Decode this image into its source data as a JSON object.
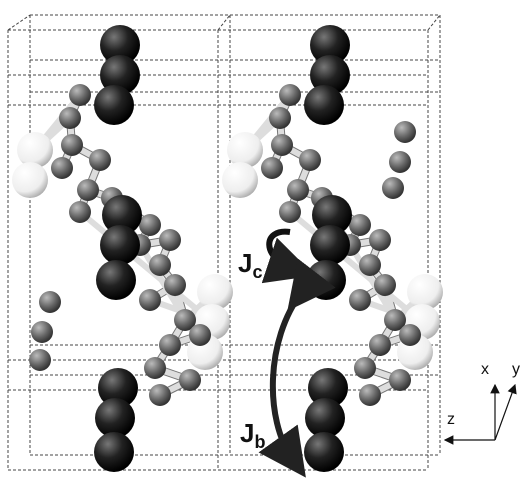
{
  "labels": {
    "jc": {
      "main": "J",
      "sub": "c"
    },
    "jb": {
      "main": "J",
      "sub": "b"
    }
  },
  "axes": {
    "x": "x",
    "y": "y",
    "z": "z"
  }
}
